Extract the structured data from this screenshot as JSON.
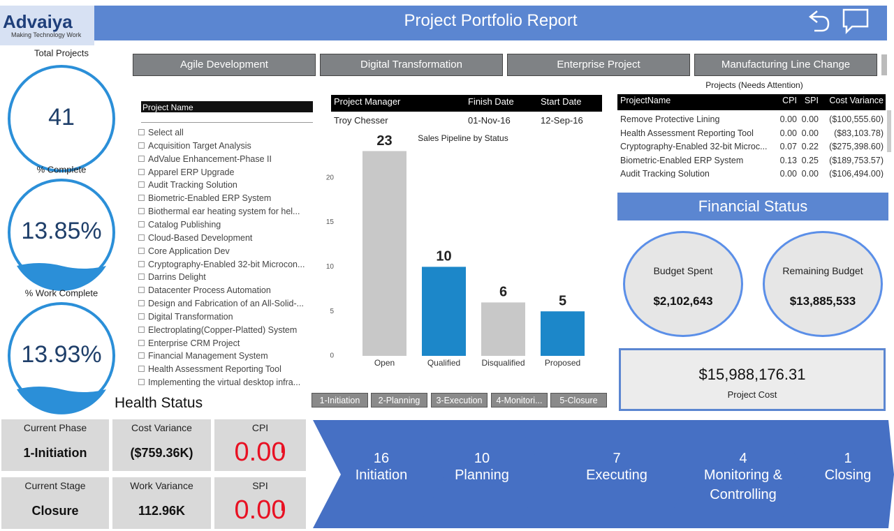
{
  "header": {
    "brand": "Advaiya",
    "tagline": "Making Technology Work",
    "title": "Project Portfolio Report"
  },
  "kpis": [
    {
      "label": "Total Projects",
      "value": "41"
    },
    {
      "label": "% Complete",
      "value": "13.85%"
    },
    {
      "label": "% Work Complete",
      "value": "13.93%"
    }
  ],
  "tabs": [
    "Agile Development",
    "Digital Transformation",
    "Enterprise Project",
    "Manufacturing Line Change"
  ],
  "slicer": {
    "header": "Project Name",
    "items": [
      "Select all",
      "Acquisition Target Analysis",
      "AdValue Enhancement-Phase II",
      "Apparel ERP Upgrade",
      "Audit Tracking Solution",
      "Biometric-Enabled ERP System",
      "Biothermal ear heating system for hel...",
      "Catalog Publishing",
      "Cloud-Based Development",
      "Core Application Dev",
      "Cryptography-Enabled 32-bit Microcon...",
      "Darrins Delight",
      "Datacenter Process Automation",
      "Design and Fabrication of an All-Solid-...",
      "Digital Transformation",
      "Electroplating(Copper-Platted) System",
      "Enterprise CRM Project",
      "Financial Management System",
      "Health Assessment Reporting Tool",
      "Implementing the virtual desktop infra..."
    ]
  },
  "manager_table": {
    "columns": [
      "Project Manager",
      "Finish Date",
      "Start Date"
    ],
    "rows": [
      [
        "Troy Chesser",
        "01-Nov-16",
        "12-Sep-16"
      ]
    ]
  },
  "chart_data": {
    "type": "bar",
    "title": "Sales Pipeline by Status",
    "categories": [
      "Open",
      "Qualified",
      "Disqualified",
      "Proposed"
    ],
    "values": [
      23,
      10,
      6,
      5
    ],
    "colors": [
      "#c8c8c8",
      "#1c87c9",
      "#c8c8c8",
      "#1c87c9"
    ],
    "ylim": [
      0,
      25
    ],
    "yticks": [
      0,
      5,
      10,
      15,
      20
    ],
    "grid": false
  },
  "attention_table": {
    "title": "Projects (Needs Attention)",
    "columns": [
      "ProjectName",
      "CPI",
      "SPI",
      "Cost Variance"
    ],
    "rows": [
      [
        "Remove Protective Lining",
        "0.00",
        "0.00",
        "($100,555.60)"
      ],
      [
        "Health Assessment Reporting Tool",
        "0.00",
        "0.00",
        "($83,103.78)"
      ],
      [
        "Cryptography-Enabled 32-bit Microc...",
        "0.07",
        "0.22",
        "($275,398.60)"
      ],
      [
        "Biometric-Enabled ERP System",
        "0.13",
        "0.25",
        "($189,753.57)"
      ],
      [
        "Audit Tracking Solution",
        "0.00",
        "0.00",
        "($106,494.00)"
      ]
    ]
  },
  "financial": {
    "title": "Financial Status",
    "budget_spent": {
      "label": "Budget Spent",
      "value": "$2,102,643"
    },
    "remaining_budget": {
      "label": "Remaining Budget",
      "value": "$13,885,533"
    },
    "project_cost": {
      "label": "Project Cost",
      "value": "$15,988,176.31"
    }
  },
  "phase_buttons": [
    "1-Initiation",
    "2-Planning",
    "3-Execution",
    "4-Monitori...",
    "5-Closure"
  ],
  "health": {
    "title": "Health Status",
    "cards": [
      {
        "label": "Current Phase",
        "value": "1-Initiation"
      },
      {
        "label": "Cost Variance",
        "value": "($759.36K)"
      },
      {
        "label": "CPI",
        "value": "0.00"
      },
      {
        "label": "Current Stage",
        "value": "Closure"
      },
      {
        "label": "Work Variance",
        "value": "112.96K"
      },
      {
        "label": "SPI",
        "value": "0.00"
      }
    ]
  },
  "phases": [
    {
      "count": "16",
      "label": "Initiation"
    },
    {
      "count": "10",
      "label": "Planning"
    },
    {
      "count": "7",
      "label": "Executing"
    },
    {
      "count": "4",
      "label": "Monitoring & Controlling"
    },
    {
      "count": "1",
      "label": "Closing"
    }
  ]
}
